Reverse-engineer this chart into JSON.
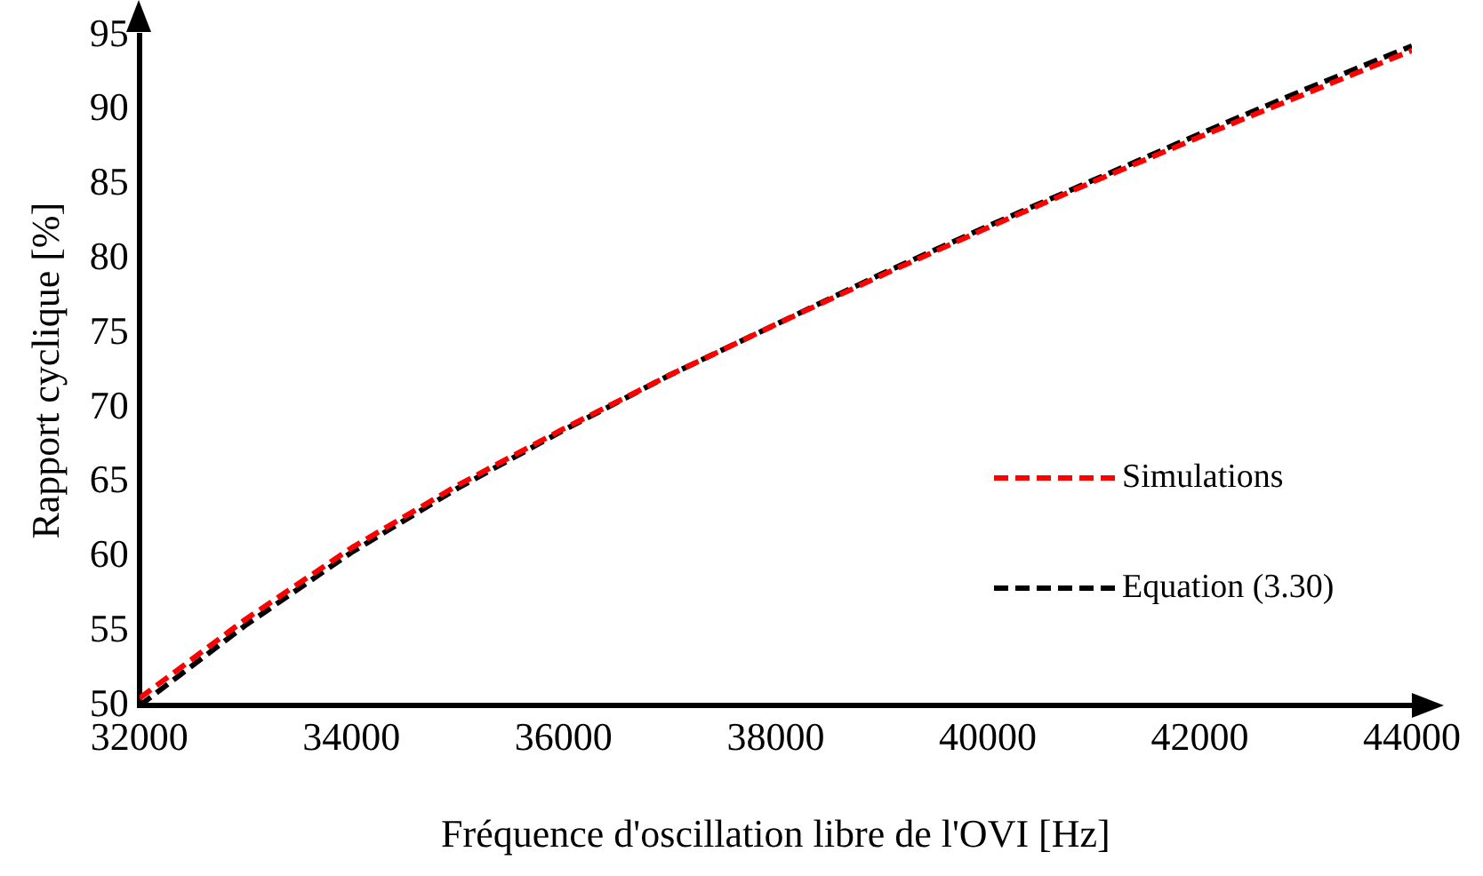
{
  "chart_data": {
    "type": "line",
    "xlabel": "Fréquence d'oscillation libre de l'OVI [Hz]",
    "ylabel": "Rapport cyclique [%]",
    "x": [
      32000,
      33000,
      34000,
      35000,
      36000,
      37000,
      38000,
      39000,
      40000,
      41000,
      42000,
      43000,
      44000
    ],
    "series": [
      {
        "name": "Simulations",
        "color": "#ff0000",
        "values": [
          50.5,
          55.8,
          60.6,
          64.8,
          68.6,
          72.2,
          75.6,
          78.9,
          82.1,
          85.2,
          88.2,
          91.1,
          94.0
        ]
      },
      {
        "name": "Equation (3.30)",
        "color": "#000000",
        "values": [
          50.0,
          55.4,
          60.3,
          64.6,
          68.5,
          72.2,
          75.6,
          79.0,
          82.2,
          85.3,
          88.4,
          91.4,
          94.3
        ]
      }
    ],
    "xlim": [
      32000,
      44000
    ],
    "xticks": [
      32000,
      34000,
      36000,
      38000,
      40000,
      42000,
      44000
    ],
    "ylim": [
      50,
      95
    ],
    "yticks": [
      50,
      55,
      60,
      65,
      70,
      75,
      80,
      85,
      90,
      95
    ],
    "grid": false,
    "legend": "right",
    "marker": "none",
    "line_style": "dashed"
  }
}
